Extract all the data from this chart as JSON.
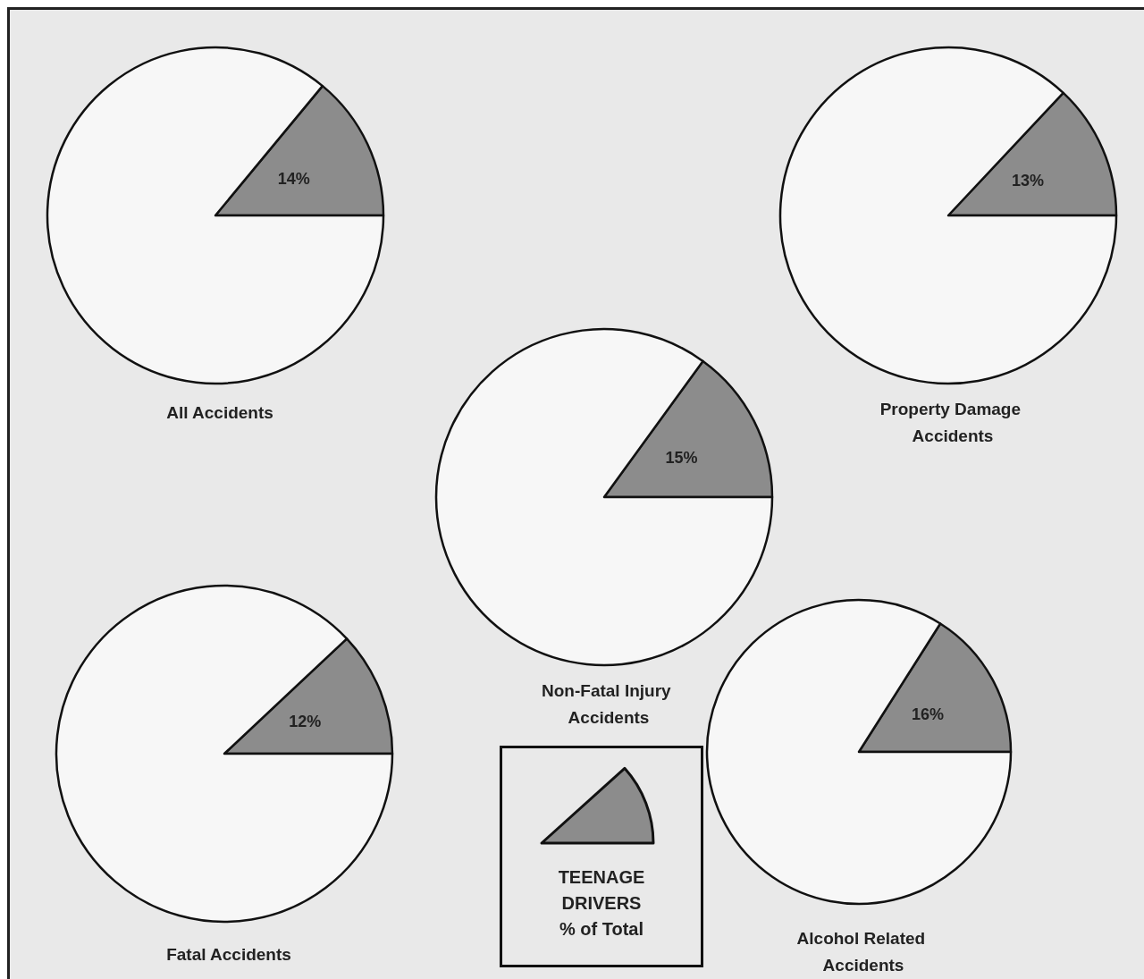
{
  "chart_data": [
    {
      "type": "pie",
      "title": "All Accidents",
      "categories": [
        null,
        null
      ],
      "values": [
        14,
        86
      ],
      "colors": [
        "#8c8c8c",
        "#f7f7f7"
      ],
      "value_labels": [
        "14%",
        null
      ]
    },
    {
      "type": "pie",
      "title": "Property Damage Accidents",
      "categories": [
        null,
        null
      ],
      "values": [
        13,
        87
      ],
      "colors": [
        "#8c8c8c",
        "#f7f7f7"
      ],
      "value_labels": [
        "13%",
        null
      ]
    },
    {
      "type": "pie",
      "title": "Non-Fatal Injury Accidents",
      "categories": [
        null,
        null
      ],
      "values": [
        15,
        85
      ],
      "colors": [
        "#8c8c8c",
        "#f7f7f7"
      ],
      "value_labels": [
        "15%",
        null
      ]
    },
    {
      "type": "pie",
      "title": "Fatal Accidents",
      "categories": [
        null,
        null
      ],
      "values": [
        12,
        88
      ],
      "colors": [
        "#8c8c8c",
        "#f7f7f7"
      ],
      "value_labels": [
        "12%",
        null
      ]
    },
    {
      "type": "pie",
      "title": "Alcohol Related Accidents",
      "categories": [
        null,
        null
      ],
      "values": [
        16,
        84
      ],
      "colors": [
        "#8c8c8c",
        "#f7f7f7"
      ],
      "value_labels": [
        "16%",
        null
      ]
    },
    {
      "type": "other",
      "title": "TEENAGE DRIVERS % of Total"
    }
  ]
}
